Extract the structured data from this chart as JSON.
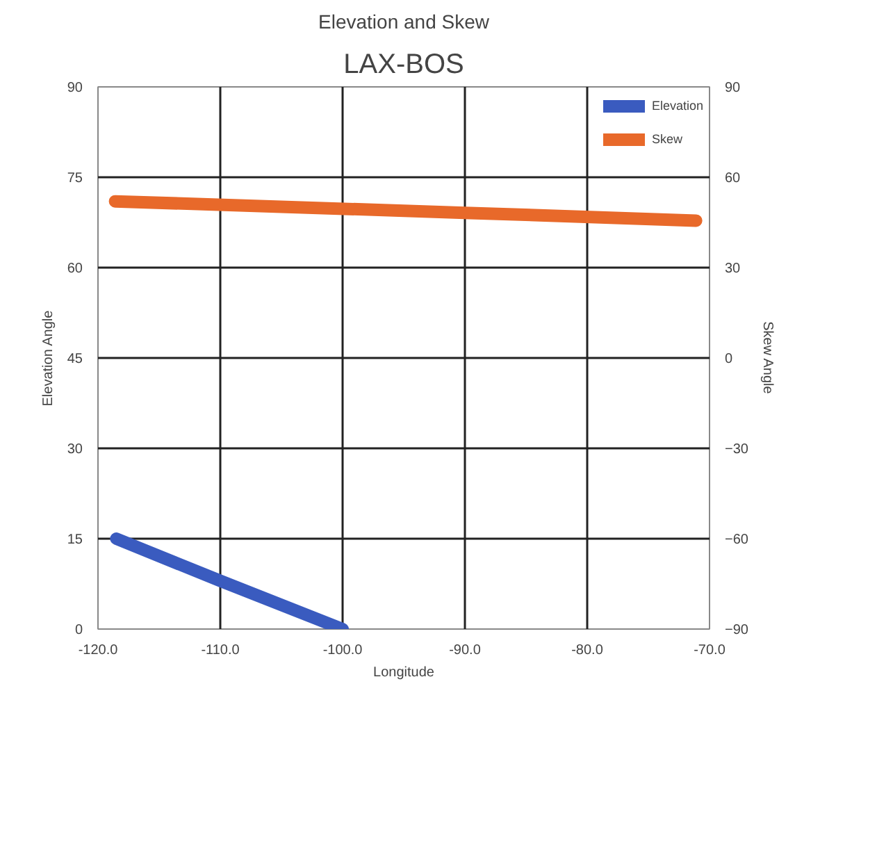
{
  "chart_data": {
    "type": "line",
    "title": "Elevation and Skew",
    "subtitle": "LAX-BOS",
    "xlabel": "Longitude",
    "ylabel": "Elevation Angle",
    "y2label": "Skew Angle",
    "series": [
      {
        "name": "Elevation",
        "color": "#3a5bbf",
        "x": [
          -118.5,
          -110,
          -100
        ],
        "values": [
          15,
          8,
          0
        ]
      },
      {
        "name": "Skew",
        "color": "#e8692a",
        "x": [
          -118.6,
          -90,
          -71.1
        ],
        "values": [
          52,
          48.2,
          45.6
        ],
        "axis": "y2"
      }
    ],
    "xlim": [
      -120,
      -70
    ],
    "xticks": [
      {
        "value": -120,
        "label": "-120.0"
      },
      {
        "value": -110,
        "label": "-110.0"
      },
      {
        "value": -100,
        "label": "-100.0"
      },
      {
        "value": -90,
        "label": "-90.0"
      },
      {
        "value": -80,
        "label": "-80.0"
      },
      {
        "value": -70,
        "label": "-70.0"
      }
    ],
    "ylim": [
      0,
      90
    ],
    "yticks": [
      0,
      15,
      30,
      45,
      60,
      75,
      90
    ],
    "y2lim": [
      -90,
      90
    ],
    "y2ticks": [
      -90,
      -60,
      -30,
      0,
      30,
      60,
      90
    ],
    "grid": true,
    "legend": "top right",
    "marker": "none",
    "line_style": "solid"
  }
}
